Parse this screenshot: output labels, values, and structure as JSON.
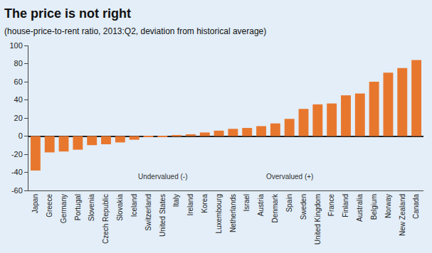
{
  "chart_data": {
    "type": "bar",
    "title": "The price is not right",
    "subtitle": "(house-price-to-rent ratio, 2013:Q2, deviation from historical average)",
    "categories": [
      "Japan",
      "Greece",
      "Germany",
      "Portugal",
      "Slovenia",
      "Czech Republic",
      "Slovakia",
      "Iceland",
      "Switzerland",
      "United States",
      "Italy",
      "Ireland",
      "Korea",
      "Luxembourg",
      "Netherlands",
      "Israel",
      "Austria",
      "Denmark",
      "Spain",
      "Sweden",
      "United Kingdom",
      "France",
      "Finland",
      "Australia",
      "Belgium",
      "Norway",
      "New Zealand",
      "Canada"
    ],
    "values": [
      -38,
      -18,
      -17,
      -15,
      -10,
      -9,
      -7,
      -4,
      -1,
      -1,
      1,
      2,
      4,
      6,
      8,
      9,
      11,
      14,
      19,
      30,
      35,
      36,
      45,
      47,
      60,
      70,
      75,
      84
    ],
    "color": "#e8772e",
    "ylim": [
      -60,
      100
    ],
    "yticks": [
      -60,
      -40,
      -20,
      0,
      20,
      40,
      60,
      80,
      100
    ],
    "grid": false,
    "annotations": [
      {
        "text": "Undervalued (-)",
        "x": "United States",
        "y": -45
      },
      {
        "text": "Overvalued (+)",
        "x": "Spain",
        "y": -45
      }
    ]
  }
}
